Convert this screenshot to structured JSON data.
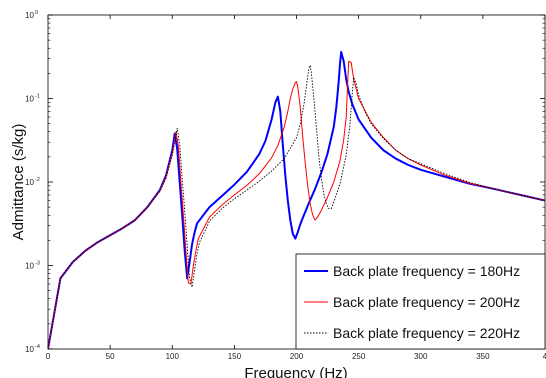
{
  "chart_data": {
    "type": "line",
    "title": "",
    "xlabel": "Frequency (Hz)",
    "ylabel": "Admittance (s/kg)",
    "xlim": [
      0,
      400
    ],
    "ylim": [
      0.0001,
      1
    ],
    "yscale": "log",
    "x_ticks": [
      "0",
      "50",
      "100",
      "150",
      "200",
      "250",
      "300",
      "350",
      "4"
    ],
    "y_ticks": [
      {
        "base": "10",
        "exp": "0"
      },
      {
        "base": "10",
        "exp": "-1"
      },
      {
        "base": "10",
        "exp": "-2"
      },
      {
        "base": "10",
        "exp": "-3"
      },
      {
        "base": "10",
        "exp": "-4"
      }
    ],
    "grid": false,
    "legend_position": "bottom-right",
    "series": [
      {
        "name": "Back plate frequency = 180Hz",
        "color": "#0000ff",
        "style": "solid",
        "x": [
          0,
          10,
          20,
          30,
          40,
          50,
          60,
          70,
          80,
          90,
          95,
          100,
          102,
          104,
          106,
          108,
          110,
          112,
          114,
          116,
          118,
          120,
          130,
          140,
          150,
          160,
          170,
          175,
          180,
          183,
          185,
          187,
          189,
          191,
          193,
          195,
          197,
          199,
          201,
          203,
          205,
          210,
          215,
          220,
          225,
          230,
          232,
          234,
          235,
          236,
          238,
          240,
          242,
          245,
          250,
          260,
          270,
          280,
          290,
          300,
          320,
          340,
          360,
          380,
          400
        ],
        "values": [
          0.0001,
          0.0007,
          0.0011,
          0.0015,
          0.0019,
          0.0023,
          0.0028,
          0.0035,
          0.005,
          0.008,
          0.012,
          0.024,
          0.038,
          0.025,
          0.01,
          0.004,
          0.0015,
          0.0007,
          0.0011,
          0.0018,
          0.0025,
          0.0032,
          0.005,
          0.0068,
          0.0093,
          0.0132,
          0.0215,
          0.031,
          0.056,
          0.09,
          0.105,
          0.07,
          0.028,
          0.012,
          0.006,
          0.0035,
          0.0024,
          0.0021,
          0.0025,
          0.0031,
          0.0037,
          0.0056,
          0.0083,
          0.013,
          0.022,
          0.046,
          0.078,
          0.16,
          0.26,
          0.36,
          0.28,
          0.17,
          0.12,
          0.085,
          0.056,
          0.034,
          0.024,
          0.019,
          0.016,
          0.014,
          0.0115,
          0.0095,
          0.0082,
          0.007,
          0.006
        ]
      },
      {
        "name": "Back plate frequency = 200Hz",
        "color": "#ff0000",
        "style": "solid",
        "x": [
          0,
          10,
          20,
          30,
          40,
          50,
          60,
          70,
          80,
          90,
          95,
          100,
          103,
          105,
          107,
          109,
          111,
          113,
          115,
          117,
          119,
          121,
          130,
          140,
          150,
          160,
          170,
          180,
          185,
          190,
          193,
          195,
          197,
          199,
          200,
          201,
          203,
          205,
          207,
          209,
          211,
          213,
          215,
          217,
          220,
          225,
          230,
          235,
          238,
          240,
          241,
          242,
          244,
          246,
          250,
          260,
          270,
          280,
          290,
          300,
          320,
          340,
          360,
          380,
          400
        ],
        "values": [
          0.0001,
          0.0007,
          0.0011,
          0.0015,
          0.0019,
          0.0023,
          0.0028,
          0.0035,
          0.005,
          0.0078,
          0.0115,
          0.022,
          0.04,
          0.026,
          0.01,
          0.004,
          0.0015,
          0.00062,
          0.0006,
          0.001,
          0.0015,
          0.0021,
          0.0038,
          0.0053,
          0.007,
          0.0091,
          0.0125,
          0.0195,
          0.0275,
          0.045,
          0.07,
          0.1,
          0.13,
          0.155,
          0.16,
          0.14,
          0.08,
          0.035,
          0.017,
          0.009,
          0.0055,
          0.004,
          0.0035,
          0.0038,
          0.0046,
          0.0066,
          0.01,
          0.018,
          0.032,
          0.06,
          0.13,
          0.28,
          0.27,
          0.17,
          0.1,
          0.052,
          0.034,
          0.024,
          0.019,
          0.016,
          0.012,
          0.0096,
          0.0082,
          0.007,
          0.006
        ]
      },
      {
        "name": "Back plate frequency = 220Hz",
        "color": "#000000",
        "style": "dotted",
        "x": [
          0,
          10,
          20,
          30,
          40,
          50,
          60,
          70,
          80,
          90,
          95,
          100,
          104,
          106,
          108,
          110,
          112,
          114,
          116,
          118,
          120,
          122,
          130,
          140,
          150,
          160,
          170,
          180,
          190,
          200,
          203,
          206,
          208,
          210,
          211,
          212,
          214,
          216,
          218,
          220,
          222,
          224,
          226,
          228,
          230,
          235,
          240,
          243,
          245,
          246,
          248,
          250,
          255,
          260,
          270,
          280,
          290,
          300,
          320,
          340,
          360,
          380,
          400
        ],
        "values": [
          0.0001,
          0.0007,
          0.0011,
          0.0015,
          0.0019,
          0.0023,
          0.0028,
          0.0035,
          0.005,
          0.0077,
          0.011,
          0.021,
          0.044,
          0.028,
          0.011,
          0.0045,
          0.0017,
          0.0007,
          0.00055,
          0.0009,
          0.0014,
          0.0019,
          0.0034,
          0.0048,
          0.0063,
          0.008,
          0.0102,
          0.0135,
          0.019,
          0.034,
          0.049,
          0.086,
          0.14,
          0.23,
          0.25,
          0.2,
          0.1,
          0.045,
          0.02,
          0.011,
          0.0072,
          0.0055,
          0.0048,
          0.0048,
          0.0058,
          0.0095,
          0.021,
          0.048,
          0.12,
          0.18,
          0.15,
          0.11,
          0.07,
          0.05,
          0.033,
          0.024,
          0.019,
          0.0165,
          0.0125,
          0.0098,
          0.0082,
          0.007,
          0.006
        ]
      }
    ]
  }
}
